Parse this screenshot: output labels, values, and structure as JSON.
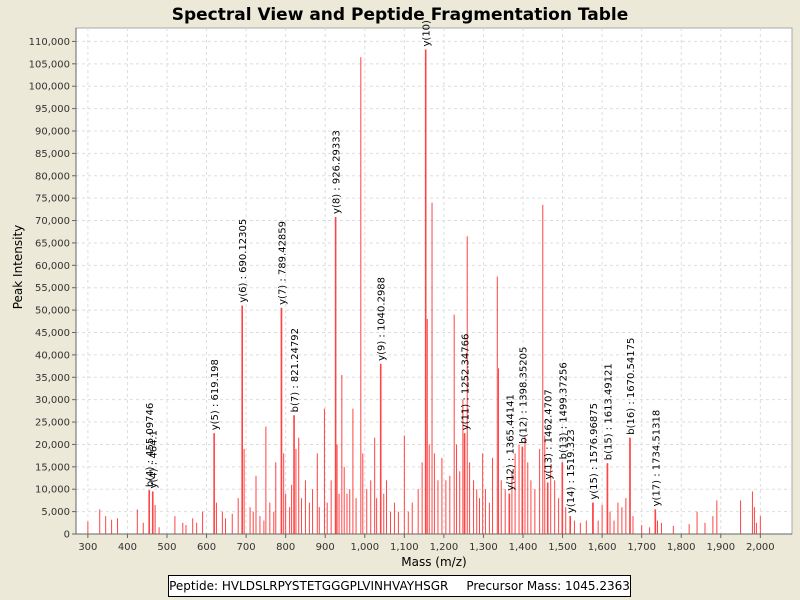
{
  "chart_data": {
    "type": "bar",
    "title": "Spectral View and Peptide Fragmentation Table",
    "xlabel": "Mass (m/z)",
    "ylabel": "Peak Intensity",
    "xlim": [
      270,
      2080
    ],
    "ylim": [
      0,
      113000
    ],
    "xticks": [
      300,
      400,
      500,
      600,
      700,
      800,
      900,
      1000,
      1100,
      1200,
      1300,
      1400,
      1500,
      1600,
      1700,
      1800,
      1900,
      2000
    ],
    "xtick_labels": [
      "300",
      "400",
      "500",
      "600",
      "700",
      "800",
      "900",
      "1,000",
      "1,100",
      "1,200",
      "1,300",
      "1,400",
      "1,500",
      "1,600",
      "1,700",
      "1,800",
      "1,900",
      "2,000"
    ],
    "yticks": [
      0,
      5000,
      10000,
      15000,
      20000,
      25000,
      30000,
      35000,
      40000,
      45000,
      50000,
      55000,
      60000,
      65000,
      70000,
      75000,
      80000,
      85000,
      90000,
      95000,
      100000,
      105000,
      110000
    ],
    "ytick_labels": [
      "0",
      "5,000",
      "10,000",
      "15,000",
      "20,000",
      "25,000",
      "30,000",
      "35,000",
      "40,000",
      "45,000",
      "50,000",
      "55,000",
      "60,000",
      "65,000",
      "70,000",
      "75,000",
      "80,000",
      "85,000",
      "90,000",
      "95,000",
      "100,000",
      "105,000",
      "110,000"
    ],
    "grid": true,
    "peak_color": "#ff4444",
    "annotated_peaks": [
      {
        "mz": 455.0,
        "intensity": 9800,
        "label": "b(4) : 455.09746"
      },
      {
        "mz": 464.0,
        "intensity": 9500,
        "label": "y(4) : 464.1"
      },
      {
        "mz": 619.198,
        "intensity": 22500,
        "label": "y(5) : 619.198"
      },
      {
        "mz": 690.12305,
        "intensity": 51000,
        "label": "y(6) : 690.12305"
      },
      {
        "mz": 789.42859,
        "intensity": 50500,
        "label": "y(7) : 789.42859"
      },
      {
        "mz": 821.24792,
        "intensity": 26500,
        "label": "b(7) : 821.24792"
      },
      {
        "mz": 926.29333,
        "intensity": 70800,
        "label": "y(8) : 926.29333"
      },
      {
        "mz": 1040.2988,
        "intensity": 38000,
        "label": "y(9) : 1040.2988"
      },
      {
        "mz": 1154.0,
        "intensity": 108200,
        "label": "y(10)"
      },
      {
        "mz": 1252.34766,
        "intensity": 22500,
        "label": "y(11) : 1252.34766"
      },
      {
        "mz": 1365.44141,
        "intensity": 9000,
        "label": "y(12) : 1365.44141"
      },
      {
        "mz": 1398.35205,
        "intensity": 19500,
        "label": "b(12) : 1398.35205"
      },
      {
        "mz": 1462.4707,
        "intensity": 11500,
        "label": "y(13) : 1462.4707"
      },
      {
        "mz": 1499.37256,
        "intensity": 16000,
        "label": "b(13) : 1499.37256"
      },
      {
        "mz": 1519.323,
        "intensity": 4000,
        "label": "y(14) : 1519.323"
      },
      {
        "mz": 1576.96875,
        "intensity": 7000,
        "label": "y(15) : 1576.96875"
      },
      {
        "mz": 1613.49121,
        "intensity": 15800,
        "label": "b(15) : 1613.49121"
      },
      {
        "mz": 1670.54175,
        "intensity": 21500,
        "label": "b(16) : 1670.54175"
      },
      {
        "mz": 1734.51318,
        "intensity": 5500,
        "label": "y(17) : 1734.51318"
      }
    ],
    "peaks": [
      [
        300,
        2800
      ],
      [
        330,
        5500
      ],
      [
        345,
        4000
      ],
      [
        360,
        3200
      ],
      [
        375,
        3500
      ],
      [
        425,
        5500
      ],
      [
        440,
        2500
      ],
      [
        455,
        9800
      ],
      [
        464,
        9500
      ],
      [
        470,
        6500
      ],
      [
        480,
        1500
      ],
      [
        520,
        4000
      ],
      [
        540,
        2500
      ],
      [
        548,
        2000
      ],
      [
        565,
        3500
      ],
      [
        575,
        2500
      ],
      [
        590,
        5000
      ],
      [
        619,
        22500
      ],
      [
        625,
        7000
      ],
      [
        640,
        5000
      ],
      [
        648,
        3500
      ],
      [
        665,
        4500
      ],
      [
        680,
        8000
      ],
      [
        690,
        51000
      ],
      [
        695,
        19000
      ],
      [
        710,
        6000
      ],
      [
        718,
        5000
      ],
      [
        725,
        13000
      ],
      [
        735,
        4000
      ],
      [
        745,
        3000
      ],
      [
        750,
        24000
      ],
      [
        760,
        7000
      ],
      [
        770,
        5000
      ],
      [
        775,
        16000
      ],
      [
        789,
        50500
      ],
      [
        795,
        18000
      ],
      [
        800,
        9000
      ],
      [
        810,
        6000
      ],
      [
        815,
        11000
      ],
      [
        821,
        26500
      ],
      [
        826,
        19000
      ],
      [
        833,
        21500
      ],
      [
        840,
        8000
      ],
      [
        850,
        12000
      ],
      [
        860,
        7000
      ],
      [
        868,
        10000
      ],
      [
        880,
        18000
      ],
      [
        885,
        6000
      ],
      [
        898,
        28000
      ],
      [
        905,
        7000
      ],
      [
        915,
        12000
      ],
      [
        926,
        70800
      ],
      [
        930,
        20000
      ],
      [
        935,
        9000
      ],
      [
        942,
        35500
      ],
      [
        948,
        15000
      ],
      [
        955,
        9000
      ],
      [
        962,
        10000
      ],
      [
        970,
        28000
      ],
      [
        978,
        8000
      ],
      [
        990,
        106500
      ],
      [
        995,
        18000
      ],
      [
        1005,
        10000
      ],
      [
        1015,
        12000
      ],
      [
        1025,
        21500
      ],
      [
        1030,
        8000
      ],
      [
        1040,
        38000
      ],
      [
        1048,
        9000
      ],
      [
        1055,
        12000
      ],
      [
        1065,
        5000
      ],
      [
        1075,
        7000
      ],
      [
        1085,
        5000
      ],
      [
        1100,
        22000
      ],
      [
        1110,
        5000
      ],
      [
        1120,
        7000
      ],
      [
        1135,
        10000
      ],
      [
        1145,
        16000
      ],
      [
        1154,
        108200
      ],
      [
        1158,
        48000
      ],
      [
        1163,
        20000
      ],
      [
        1170,
        74000
      ],
      [
        1176,
        18000
      ],
      [
        1185,
        12000
      ],
      [
        1195,
        17000
      ],
      [
        1205,
        12000
      ],
      [
        1215,
        13000
      ],
      [
        1226,
        49000
      ],
      [
        1232,
        20000
      ],
      [
        1240,
        14000
      ],
      [
        1248,
        30000
      ],
      [
        1252,
        22500
      ],
      [
        1259,
        66500
      ],
      [
        1265,
        16000
      ],
      [
        1275,
        12000
      ],
      [
        1283,
        10000
      ],
      [
        1290,
        8000
      ],
      [
        1298,
        18000
      ],
      [
        1305,
        10000
      ],
      [
        1315,
        7000
      ],
      [
        1323,
        17000
      ],
      [
        1335,
        57500
      ],
      [
        1338,
        37000
      ],
      [
        1345,
        12000
      ],
      [
        1355,
        10000
      ],
      [
        1365,
        9000
      ],
      [
        1372,
        14000
      ],
      [
        1380,
        18000
      ],
      [
        1390,
        20000
      ],
      [
        1398,
        19500
      ],
      [
        1405,
        22000
      ],
      [
        1412,
        16000
      ],
      [
        1420,
        12000
      ],
      [
        1430,
        10000
      ],
      [
        1442,
        19000
      ],
      [
        1450,
        73500
      ],
      [
        1455,
        22000
      ],
      [
        1462,
        11500
      ],
      [
        1470,
        15000
      ],
      [
        1480,
        12000
      ],
      [
        1490,
        8000
      ],
      [
        1499,
        16000
      ],
      [
        1508,
        6000
      ],
      [
        1519,
        4000
      ],
      [
        1530,
        3000
      ],
      [
        1545,
        2500
      ],
      [
        1560,
        3000
      ],
      [
        1576,
        7000
      ],
      [
        1590,
        3000
      ],
      [
        1600,
        6500
      ],
      [
        1613,
        15800
      ],
      [
        1620,
        5000
      ],
      [
        1630,
        3000
      ],
      [
        1640,
        7000
      ],
      [
        1650,
        6000
      ],
      [
        1660,
        8000
      ],
      [
        1670,
        21500
      ],
      [
        1678,
        4000
      ],
      [
        1700,
        2000
      ],
      [
        1720,
        1500
      ],
      [
        1734,
        5500
      ],
      [
        1740,
        3000
      ],
      [
        1750,
        2500
      ],
      [
        1780,
        1800
      ],
      [
        1820,
        2200
      ],
      [
        1840,
        5000
      ],
      [
        1860,
        2500
      ],
      [
        1880,
        4000
      ],
      [
        1890,
        7500
      ],
      [
        1950,
        7500
      ],
      [
        1980,
        9500
      ],
      [
        1985,
        6000
      ],
      [
        1990,
        2500
      ],
      [
        2000,
        4000
      ]
    ]
  },
  "legend": {
    "peptide": "Peptide: HVLDSLRPYSTETGGGPLVINHVAYHSGR",
    "precursor": "Precursor Mass: 1045.2363"
  }
}
